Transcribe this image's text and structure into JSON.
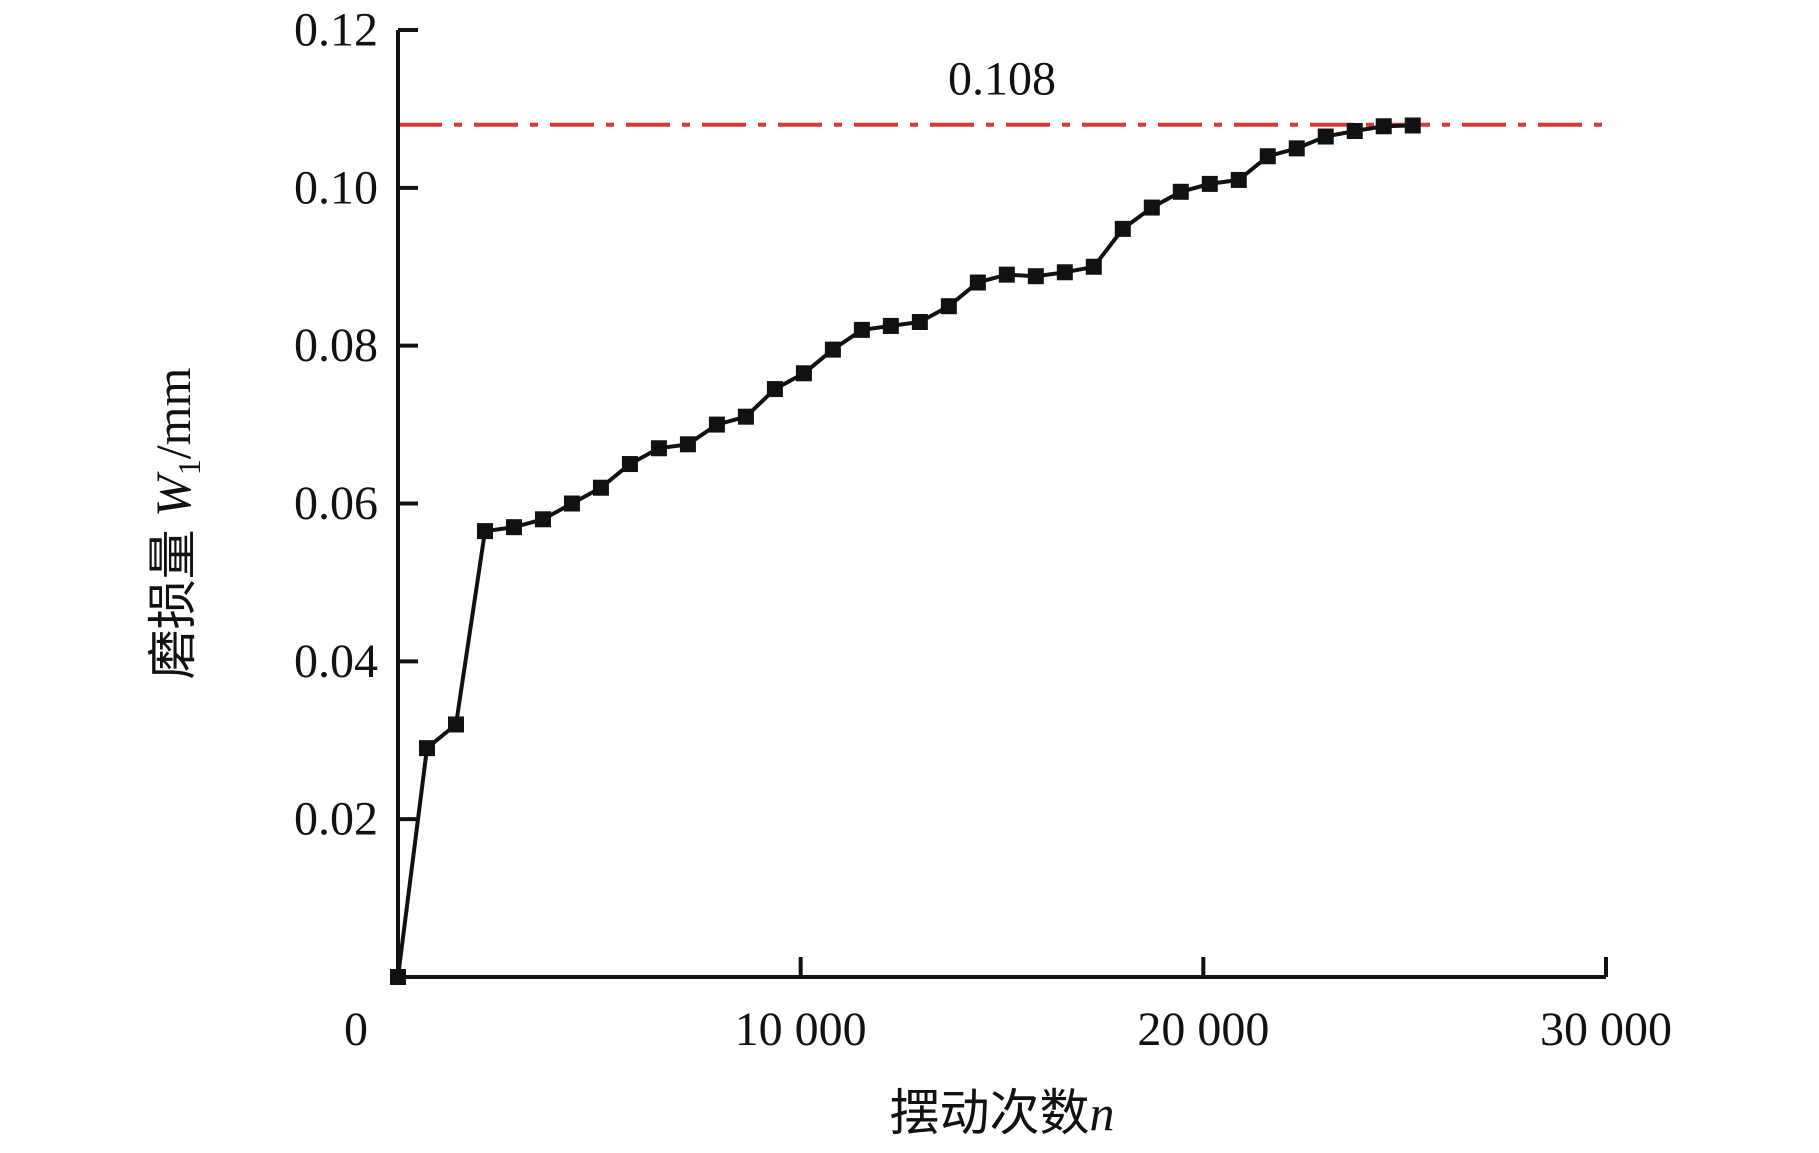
{
  "chart_data": {
    "type": "line",
    "title": "",
    "xlabel": {
      "text": "摆动次数",
      "var": "n"
    },
    "ylabel": {
      "text": "磨损量",
      "var": "W",
      "sub": "1",
      "unit": "/mm"
    },
    "xlim": [
      0,
      30000
    ],
    "ylim": [
      0,
      0.12
    ],
    "x_ticks": [
      0,
      10000,
      20000,
      30000
    ],
    "x_tick_labels": [
      "0",
      "10 000",
      "20 000",
      "30 000"
    ],
    "y_ticks": [
      0.02,
      0.04,
      0.06,
      0.08,
      0.1,
      0.12
    ],
    "y_tick_labels": [
      "0.02",
      "0.04",
      "0.06",
      "0.08",
      "0.10",
      "0.12"
    ],
    "grid": false,
    "legend": "none",
    "colors": {
      "series": "#111111",
      "reference": "#d93a36",
      "axis": "#111111"
    },
    "reference_line": {
      "value": 0.108,
      "label": "0.108",
      "style": "dash-dot"
    },
    "series": [
      {
        "marker": "square",
        "x": [
          0,
          720,
          1440,
          2160,
          2880,
          3600,
          4320,
          5040,
          5760,
          6480,
          7200,
          7920,
          8640,
          9360,
          10080,
          10800,
          11520,
          12240,
          12960,
          13680,
          14400,
          15120,
          15840,
          16560,
          17280,
          18000,
          18720,
          19440,
          20160,
          20880,
          21600,
          22320,
          23040,
          23760,
          24480,
          25200
        ],
        "y": [
          0,
          0.029,
          0.032,
          0.0565,
          0.057,
          0.058,
          0.06,
          0.062,
          0.065,
          0.067,
          0.0675,
          0.07,
          0.071,
          0.0745,
          0.0765,
          0.0795,
          0.082,
          0.0825,
          0.083,
          0.085,
          0.088,
          0.089,
          0.0888,
          0.0893,
          0.09,
          0.0948,
          0.0975,
          0.0995,
          0.1005,
          0.101,
          0.104,
          0.105,
          0.1065,
          0.1072,
          0.1078,
          0.1079
        ]
      }
    ]
  }
}
